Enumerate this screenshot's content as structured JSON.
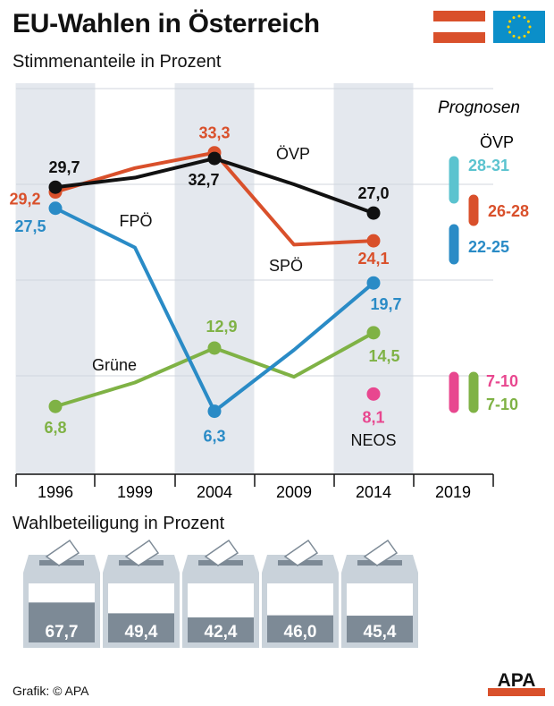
{
  "header": {
    "title": "EU-Wahlen in Österreich",
    "subtitle": "Stimmenanteile in Prozent"
  },
  "colors": {
    "oevp": "#111111",
    "spoe": "#d9502b",
    "fpoe": "#2a8bc6",
    "gruene": "#7fb245",
    "neos": "#e8478f",
    "oevp_prognose": "#5bc3cf",
    "band": "#e4e8ee",
    "grid": "#d0d6de"
  },
  "chart_data": {
    "type": "line",
    "title": "EU-Wahlen in Österreich",
    "subtitle": "Stimmenanteile in Prozent",
    "categories": [
      "1996",
      "1999",
      "2004",
      "2009",
      "2014",
      "2019"
    ],
    "ylim": [
      0,
      40
    ],
    "grid": true,
    "series": [
      {
        "key": "oevp",
        "name": "ÖVP",
        "values": [
          29.7,
          30.7,
          32.7,
          30.0,
          27.0,
          null
        ],
        "labels": {
          "0": "29,7",
          "2": "32,7",
          "4": "27,0"
        },
        "markers": [
          0,
          2,
          4
        ]
      },
      {
        "key": "spoe",
        "name": "SPÖ",
        "values": [
          29.2,
          31.7,
          33.3,
          23.7,
          24.1,
          null
        ],
        "labels": {
          "0": "29,2",
          "2": "33,3",
          "4": "24,1"
        },
        "markers": [
          0,
          2,
          4
        ]
      },
      {
        "key": "fpoe",
        "name": "FPÖ",
        "values": [
          27.5,
          23.4,
          6.3,
          12.7,
          19.7,
          null
        ],
        "labels": {
          "0": "27,5",
          "2": "6,3",
          "4": "19,7"
        },
        "markers": [
          0,
          2,
          4
        ]
      },
      {
        "key": "gruene",
        "name": "Grüne",
        "values": [
          6.8,
          9.3,
          12.9,
          9.9,
          14.5,
          null
        ],
        "labels": {
          "0": "6,8",
          "2": "12,9",
          "4": "14,5"
        },
        "markers": [
          0,
          2,
          4
        ]
      },
      {
        "key": "neos",
        "name": "NEOS",
        "values": [
          null,
          null,
          null,
          null,
          8.1,
          null
        ],
        "labels": {
          "4": "8,1"
        },
        "markers": [
          4
        ]
      }
    ],
    "prognosen": {
      "title": "Prognosen",
      "ranges": [
        {
          "key": "oevp_prognose",
          "name": "ÖVP",
          "range": [
            28,
            31
          ],
          "label": "28-31"
        },
        {
          "key": "spoe",
          "name": "SPÖ",
          "range": [
            26,
            28
          ],
          "label": "26-28"
        },
        {
          "key": "fpoe",
          "name": "FPÖ",
          "range": [
            22,
            25
          ],
          "label": "22-25"
        },
        {
          "key": "neos",
          "name": "NEOS",
          "range": [
            7,
            10
          ],
          "label": "7-10"
        },
        {
          "key": "gruene",
          "name": "Grüne",
          "range": [
            7,
            10
          ],
          "label": "7-10"
        }
      ]
    }
  },
  "turnout": {
    "title": "Wahlbeteiligung in Prozent",
    "values": [
      67.7,
      49.4,
      42.4,
      46.0,
      45.4
    ],
    "labels": [
      "67,7",
      "49,4",
      "42,4",
      "46,0",
      "45,4"
    ]
  },
  "footer": {
    "credit": "Grafik: © APA",
    "logo": "APA"
  }
}
